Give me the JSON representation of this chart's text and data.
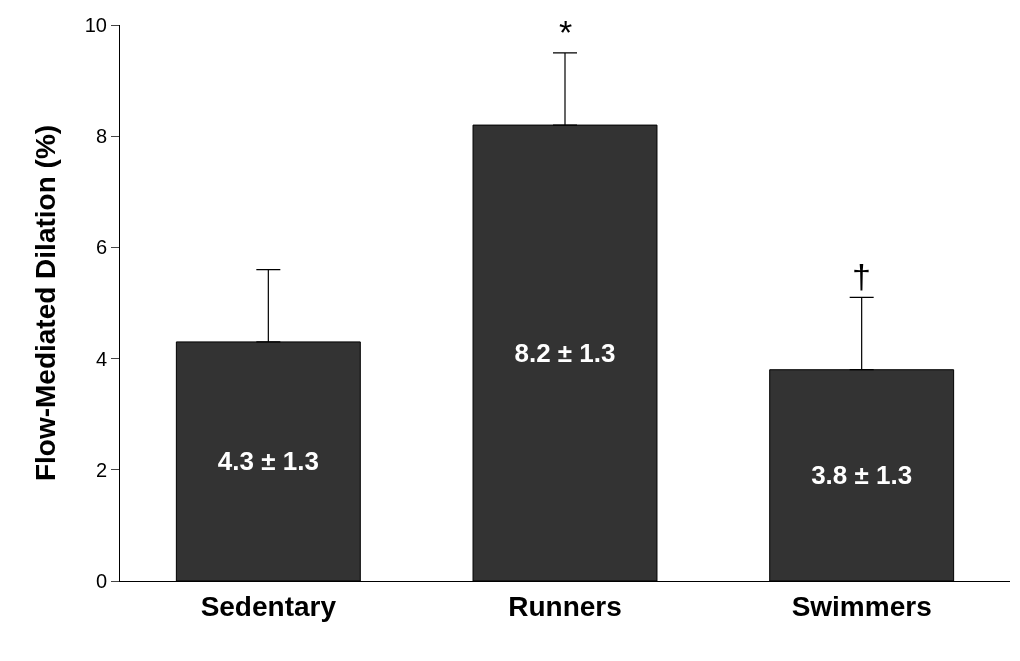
{
  "chart_data": {
    "type": "bar",
    "ylabel": "Flow-Mediated Dilation (%)",
    "categories": [
      "Sedentary",
      "Runners",
      "Swimmers"
    ],
    "values": [
      4.3,
      8.2,
      3.8
    ],
    "errors": [
      [
        4.3,
        5.6
      ],
      [
        8.2,
        9.5
      ],
      [
        3.8,
        5.1
      ]
    ],
    "value_labels": [
      "4.3 ± 1.3",
      "8.2 ± 1.3",
      "3.8 ± 1.3"
    ],
    "color": "#333333",
    "ylim": [
      0,
      10
    ],
    "yticks": [
      0,
      2,
      4,
      6,
      8,
      10
    ],
    "legend": false,
    "annotations": [
      {
        "text": "*",
        "x": "Runners",
        "y": 9.5
      },
      {
        "text": "†",
        "x": "Swimmers",
        "y": 5.1
      }
    ]
  }
}
